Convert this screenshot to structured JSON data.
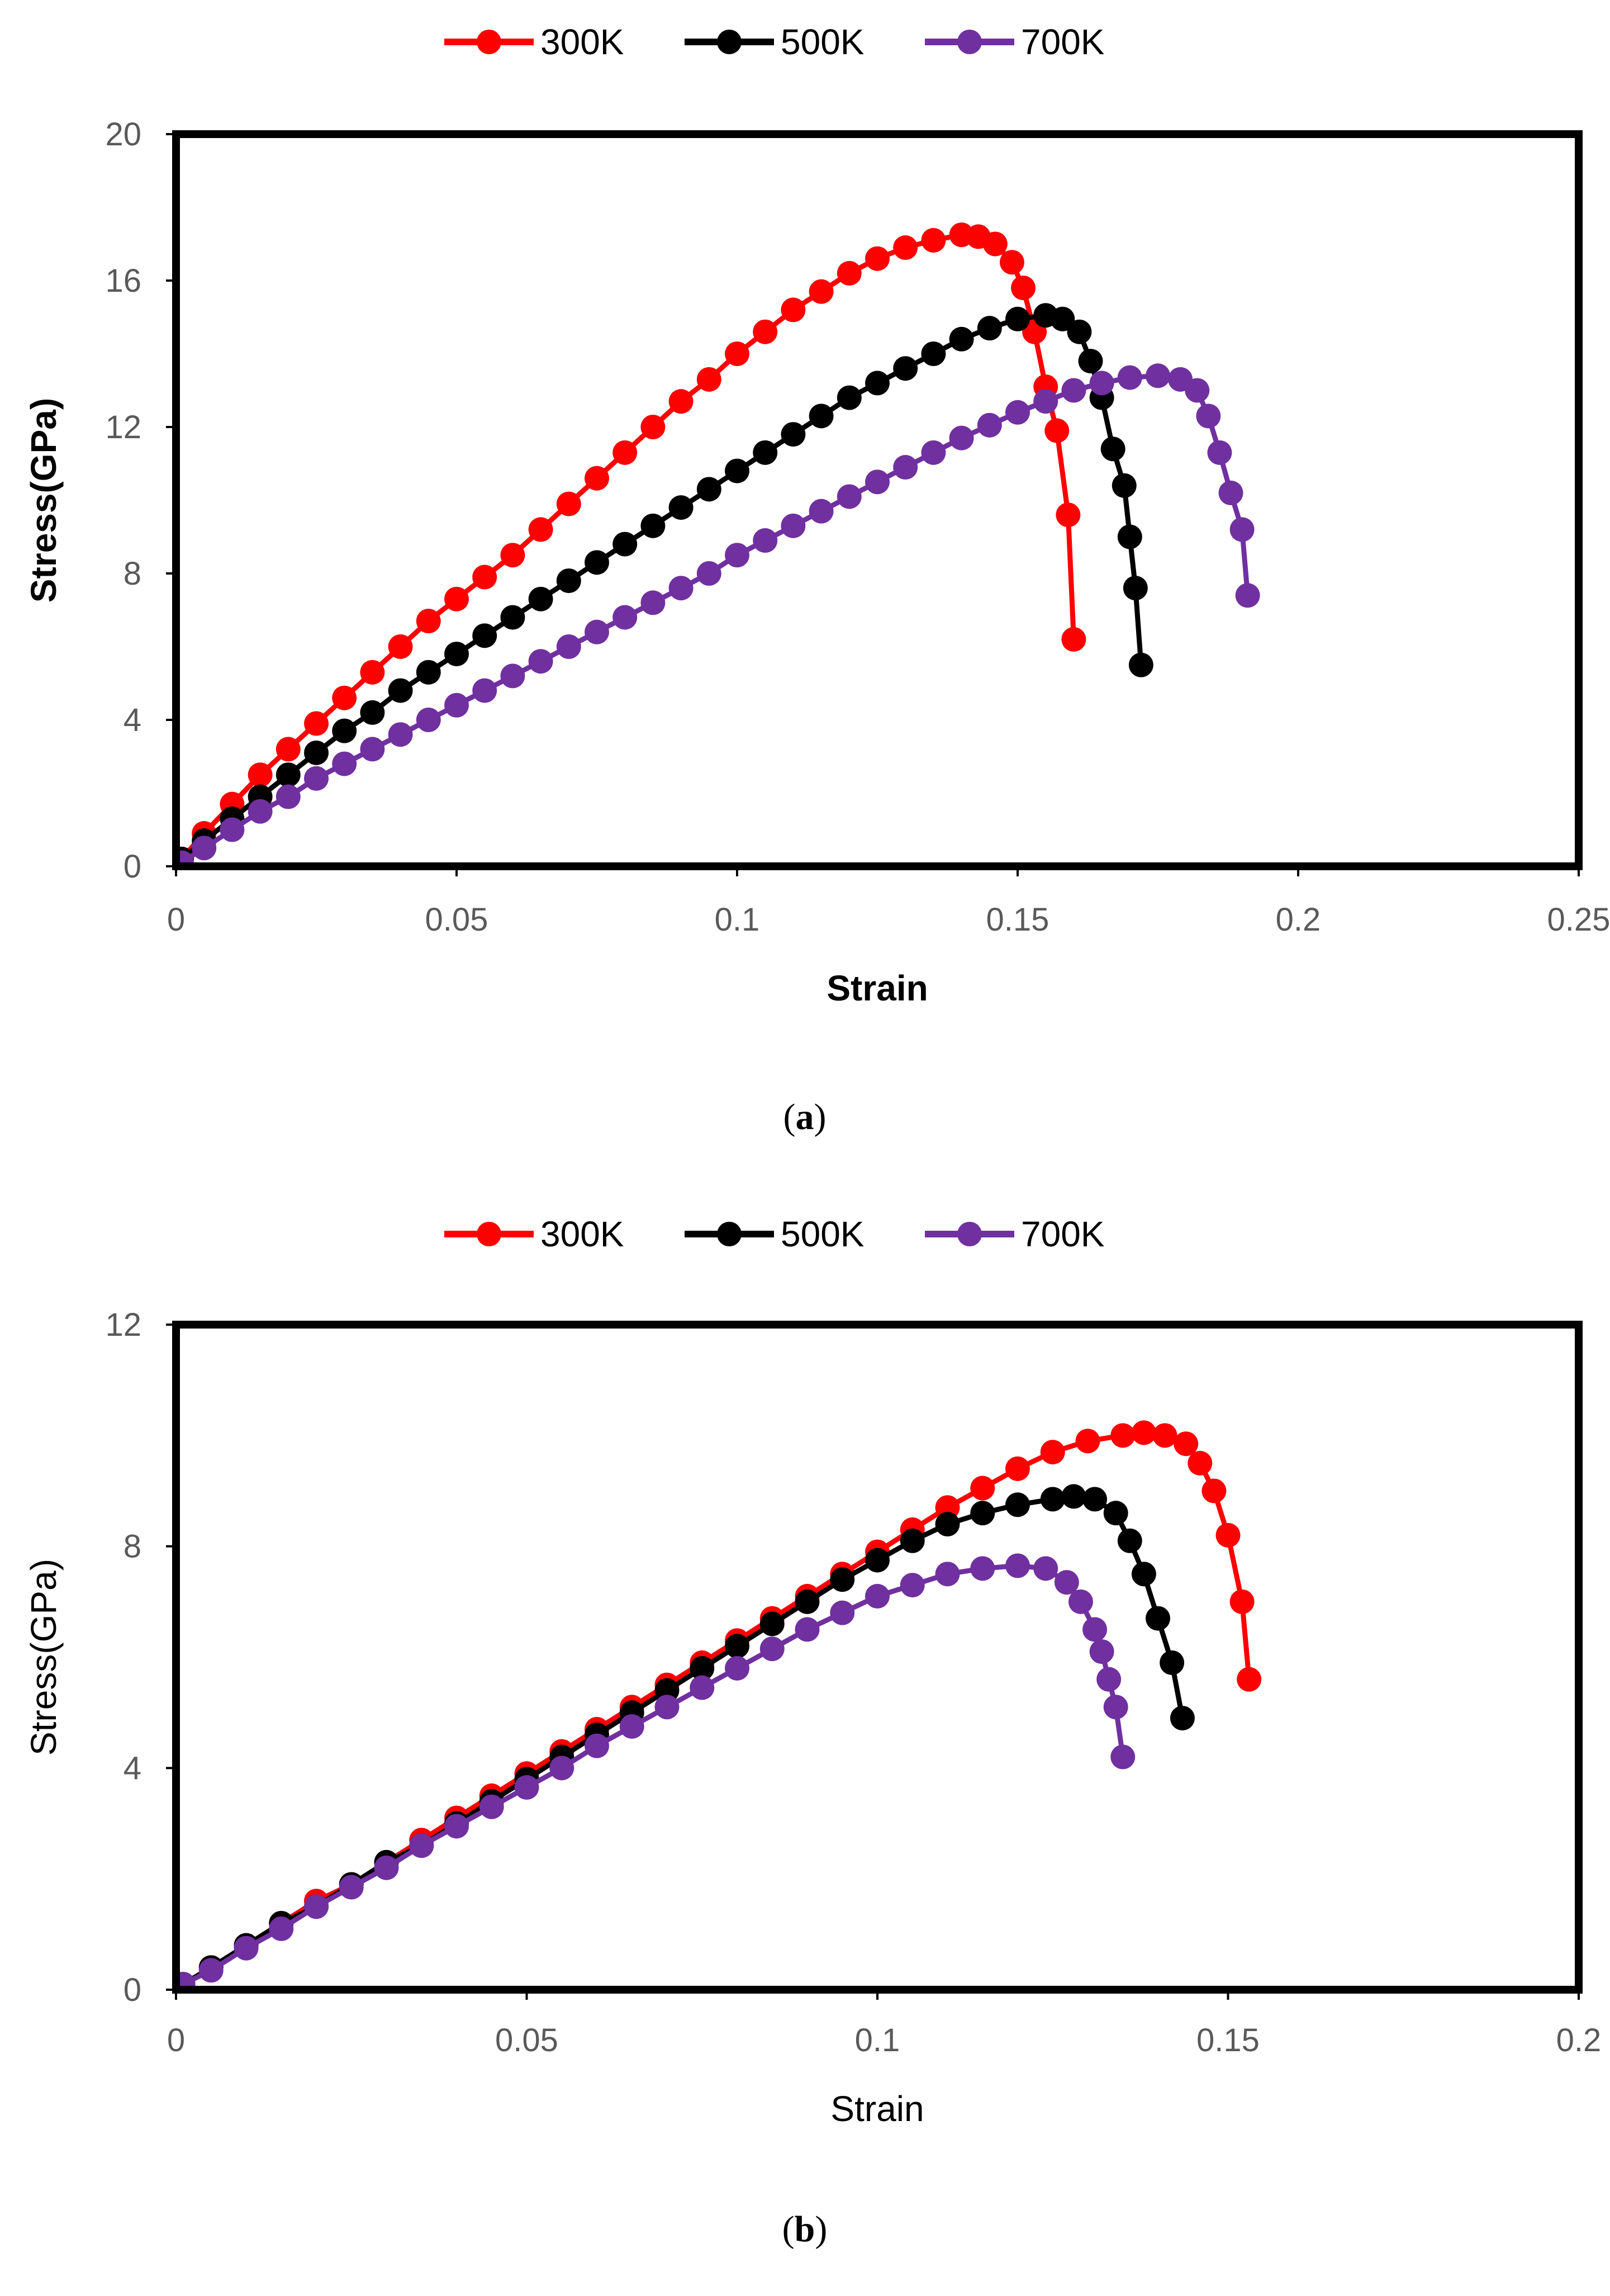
{
  "chart_data": [
    {
      "type": "line",
      "panel_label": "a",
      "caption_open": "(",
      "caption_close": ")",
      "title": "",
      "xlabel": "Strain",
      "ylabel": "Stress(GPa)",
      "xlabel_bold": true,
      "ylabel_bold": true,
      "xlim": [
        0,
        0.25
      ],
      "ylim": [
        0,
        20
      ],
      "x_ticks": [
        0,
        0.05,
        0.1,
        0.15,
        0.2,
        0.25
      ],
      "x_tick_labels": [
        "0",
        "0.05",
        "0.1",
        "0.15",
        "0.2",
        "0.25"
      ],
      "y_ticks": [
        0,
        4,
        8,
        12,
        16,
        20
      ],
      "y_tick_labels": [
        "0",
        "4",
        "8",
        "12",
        "16",
        "20"
      ],
      "grid": false,
      "legend_position": "top-center",
      "series": [
        {
          "name": "300K",
          "color": "#ff0000",
          "x": [
            0.001,
            0.005,
            0.01,
            0.015,
            0.02,
            0.025,
            0.03,
            0.035,
            0.04,
            0.045,
            0.05,
            0.055,
            0.06,
            0.065,
            0.07,
            0.075,
            0.08,
            0.085,
            0.09,
            0.095,
            0.1,
            0.105,
            0.11,
            0.115,
            0.12,
            0.125,
            0.13,
            0.135,
            0.14,
            0.143,
            0.146,
            0.149,
            0.151,
            0.153,
            0.155,
            0.157,
            0.159,
            0.16
          ],
          "y": [
            0.2,
            0.9,
            1.7,
            2.5,
            3.2,
            3.9,
            4.6,
            5.3,
            6.0,
            6.7,
            7.3,
            7.9,
            8.5,
            9.2,
            9.9,
            10.6,
            11.3,
            12.0,
            12.7,
            13.3,
            14.0,
            14.6,
            15.2,
            15.7,
            16.2,
            16.6,
            16.9,
            17.1,
            17.25,
            17.2,
            17.0,
            16.5,
            15.8,
            14.6,
            13.1,
            11.9,
            9.6,
            6.2
          ]
        },
        {
          "name": "500K",
          "color": "#000000",
          "x": [
            0.001,
            0.005,
            0.01,
            0.015,
            0.02,
            0.025,
            0.03,
            0.035,
            0.04,
            0.045,
            0.05,
            0.055,
            0.06,
            0.065,
            0.07,
            0.075,
            0.08,
            0.085,
            0.09,
            0.095,
            0.1,
            0.105,
            0.11,
            0.115,
            0.12,
            0.125,
            0.13,
            0.135,
            0.14,
            0.145,
            0.15,
            0.155,
            0.158,
            0.161,
            0.163,
            0.165,
            0.167,
            0.169,
            0.17,
            0.171,
            0.172
          ],
          "y": [
            0.2,
            0.7,
            1.3,
            1.9,
            2.5,
            3.1,
            3.7,
            4.2,
            4.8,
            5.3,
            5.8,
            6.3,
            6.8,
            7.3,
            7.8,
            8.3,
            8.8,
            9.3,
            9.8,
            10.3,
            10.8,
            11.3,
            11.8,
            12.3,
            12.8,
            13.2,
            13.6,
            14.0,
            14.4,
            14.7,
            14.95,
            15.05,
            14.95,
            14.6,
            13.8,
            12.8,
            11.4,
            10.4,
            9.0,
            7.6,
            5.5
          ]
        },
        {
          "name": "700K",
          "color": "#7030a0",
          "x": [
            0.001,
            0.005,
            0.01,
            0.015,
            0.02,
            0.025,
            0.03,
            0.035,
            0.04,
            0.045,
            0.05,
            0.055,
            0.06,
            0.065,
            0.07,
            0.075,
            0.08,
            0.085,
            0.09,
            0.095,
            0.1,
            0.105,
            0.11,
            0.115,
            0.12,
            0.125,
            0.13,
            0.135,
            0.14,
            0.145,
            0.15,
            0.155,
            0.16,
            0.165,
            0.17,
            0.175,
            0.179,
            0.182,
            0.184,
            0.186,
            0.188,
            0.19,
            0.191
          ],
          "y": [
            0.1,
            0.5,
            1.0,
            1.5,
            1.9,
            2.4,
            2.8,
            3.2,
            3.6,
            4.0,
            4.4,
            4.8,
            5.2,
            5.6,
            6.0,
            6.4,
            6.8,
            7.2,
            7.6,
            8.0,
            8.5,
            8.9,
            9.3,
            9.7,
            10.1,
            10.5,
            10.9,
            11.3,
            11.7,
            12.05,
            12.4,
            12.7,
            13.0,
            13.2,
            13.35,
            13.4,
            13.3,
            13.0,
            12.3,
            11.3,
            10.2,
            9.2,
            7.4
          ]
        }
      ]
    },
    {
      "type": "line",
      "panel_label": "b",
      "caption_open": "(",
      "caption_close": ")",
      "title": "",
      "xlabel": "Strain",
      "ylabel": "Stress(GPa)",
      "xlabel_bold": false,
      "ylabel_bold": false,
      "xlim": [
        0,
        0.2
      ],
      "ylim": [
        0,
        12
      ],
      "x_ticks": [
        0,
        0.05,
        0.1,
        0.15,
        0.2
      ],
      "x_tick_labels": [
        "0",
        "0.05",
        "0.1",
        "0.15",
        "0.2"
      ],
      "y_ticks": [
        0,
        4,
        8,
        12
      ],
      "y_tick_labels": [
        "0",
        "4",
        "8",
        "12"
      ],
      "grid": false,
      "legend_position": "top-center",
      "series": [
        {
          "name": "300K",
          "color": "#ff0000",
          "x": [
            0.001,
            0.005,
            0.01,
            0.015,
            0.02,
            0.025,
            0.03,
            0.035,
            0.04,
            0.045,
            0.05,
            0.055,
            0.06,
            0.065,
            0.07,
            0.075,
            0.08,
            0.085,
            0.09,
            0.095,
            0.1,
            0.105,
            0.11,
            0.115,
            0.12,
            0.125,
            0.13,
            0.135,
            0.138,
            0.141,
            0.144,
            0.146,
            0.148,
            0.15,
            0.152,
            0.153
          ],
          "y": [
            0.1,
            0.4,
            0.8,
            1.2,
            1.6,
            1.9,
            2.3,
            2.7,
            3.1,
            3.5,
            3.9,
            4.3,
            4.7,
            5.1,
            5.5,
            5.9,
            6.3,
            6.7,
            7.1,
            7.5,
            7.9,
            8.3,
            8.7,
            9.05,
            9.4,
            9.7,
            9.9,
            10.0,
            10.05,
            10.0,
            9.85,
            9.5,
            9.0,
            8.2,
            7.0,
            5.6
          ]
        },
        {
          "name": "500K",
          "color": "#000000",
          "x": [
            0.001,
            0.005,
            0.01,
            0.015,
            0.02,
            0.025,
            0.03,
            0.035,
            0.04,
            0.045,
            0.05,
            0.055,
            0.06,
            0.065,
            0.07,
            0.075,
            0.08,
            0.085,
            0.09,
            0.095,
            0.1,
            0.105,
            0.11,
            0.115,
            0.12,
            0.125,
            0.128,
            0.131,
            0.134,
            0.136,
            0.138,
            0.14,
            0.142,
            0.1435
          ],
          "y": [
            0.1,
            0.4,
            0.8,
            1.2,
            1.5,
            1.9,
            2.3,
            2.6,
            3.0,
            3.4,
            3.8,
            4.2,
            4.6,
            5.0,
            5.4,
            5.8,
            6.2,
            6.6,
            7.0,
            7.4,
            7.75,
            8.1,
            8.4,
            8.6,
            8.75,
            8.85,
            8.9,
            8.85,
            8.6,
            8.1,
            7.5,
            6.7,
            5.9,
            4.9
          ]
        },
        {
          "name": "700K",
          "color": "#7030a0",
          "x": [
            0.001,
            0.005,
            0.01,
            0.015,
            0.02,
            0.025,
            0.03,
            0.035,
            0.04,
            0.045,
            0.05,
            0.055,
            0.06,
            0.065,
            0.07,
            0.075,
            0.08,
            0.085,
            0.09,
            0.095,
            0.1,
            0.105,
            0.11,
            0.115,
            0.12,
            0.124,
            0.127,
            0.129,
            0.131,
            0.132,
            0.133,
            0.134,
            0.135
          ],
          "y": [
            0.1,
            0.35,
            0.75,
            1.1,
            1.5,
            1.85,
            2.2,
            2.6,
            2.95,
            3.3,
            3.65,
            4.0,
            4.4,
            4.75,
            5.1,
            5.45,
            5.8,
            6.15,
            6.5,
            6.8,
            7.1,
            7.3,
            7.5,
            7.6,
            7.65,
            7.6,
            7.35,
            7.0,
            6.5,
            6.1,
            5.6,
            5.1,
            4.2
          ]
        }
      ]
    }
  ]
}
